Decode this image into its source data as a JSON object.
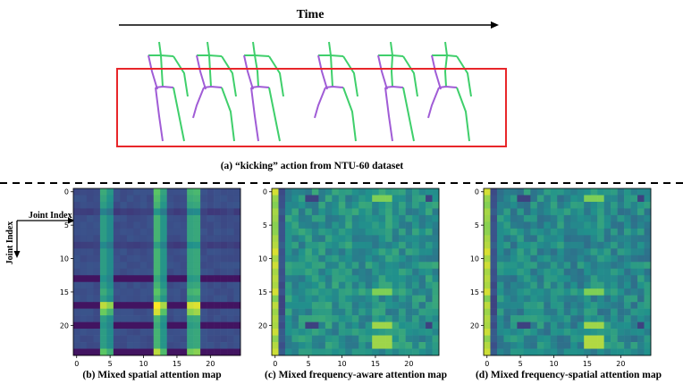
{
  "top_panel": {
    "time_label": "Time",
    "caption": "(a) “kicking” action from NTU-60 dataset",
    "colors": {
      "left_limbs": "#a05cd6",
      "right_limbs": "#3fcf6b",
      "highlight_box": "#e8262a"
    }
  },
  "axis_annotation": {
    "x_label": "Joint Index",
    "y_label": "Joint Index"
  },
  "chart_data": [
    {
      "type": "heatmap",
      "caption": "(b) Mixed spatial attention map",
      "colormap": "viridis",
      "size": 25,
      "row_ticks": [
        "0",
        "5",
        "10",
        "15",
        "20"
      ],
      "col_ticks": [
        "0",
        "5",
        "10",
        "15",
        "20"
      ],
      "base_level": 0.24,
      "bright_columns": {
        "4": 0.45,
        "5": 0.38,
        "12": 0.55,
        "13": 0.42,
        "17": 0.48,
        "18": 0.5
      },
      "row_factor": {
        "0": 1.2,
        "1": 1.1,
        "3": 0.8,
        "8": 0.9,
        "13": 0.85,
        "15": 1.2,
        "17": 2.0,
        "18": 1.7,
        "20": 0.9,
        "24": 1.6
      },
      "dark_rows": [
        13,
        17,
        20,
        24
      ]
    },
    {
      "type": "heatmap",
      "caption": "(c) Mixed frequency-aware attention map",
      "colormap": "viridis",
      "size": 25,
      "row_ticks": [
        "0",
        "5",
        "10",
        "15",
        "20"
      ],
      "col_ticks": [
        "0",
        "5",
        "10",
        "15",
        "20"
      ],
      "base_level": 0.5,
      "bright_column": 0,
      "dark_column": 1,
      "hot_rows": {
        "1": 0.8,
        "15": 0.8,
        "20": 0.85,
        "22": 0.85,
        "23": 0.85
      },
      "hot_columns": [
        15,
        16,
        17
      ]
    },
    {
      "type": "heatmap",
      "caption": "(d) Mixed frequency-spatial attention map",
      "colormap": "viridis",
      "size": 25,
      "row_ticks": [
        "0",
        "5",
        "10",
        "15",
        "20"
      ],
      "col_ticks": [
        "0",
        "5",
        "10",
        "15",
        "20"
      ],
      "base_level": 0.47,
      "bright_column": 0,
      "dark_column": 1,
      "hot_rows": {
        "1": 0.8,
        "15": 0.8,
        "20": 0.85,
        "22": 0.88,
        "23": 0.88
      },
      "hot_columns": [
        15,
        16,
        17
      ]
    }
  ]
}
